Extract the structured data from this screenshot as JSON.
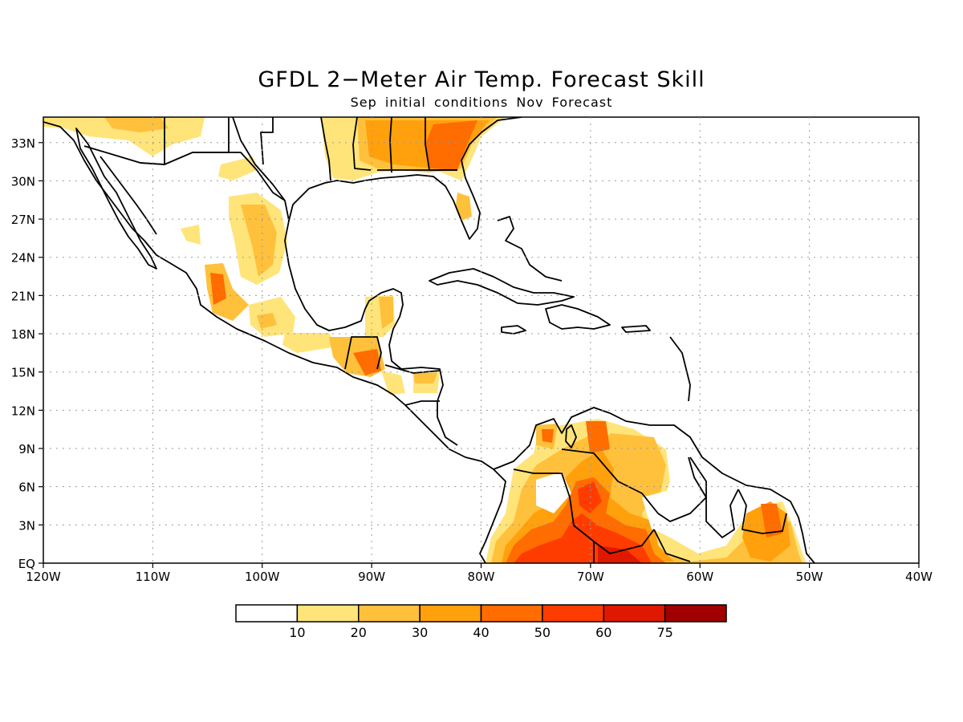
{
  "title": "GFDL 2−Meter Air Temp. Forecast Skill",
  "subtitle": "Sep initial conditions  Nov Forecast",
  "map": {
    "lon_range": [
      -120,
      -40
    ],
    "lat_range": [
      0,
      35
    ],
    "lon_labels": [
      "120W",
      "110W",
      "100W",
      "90W",
      "80W",
      "70W",
      "60W",
      "50W",
      "40W"
    ],
    "lat_labels": [
      "EQ",
      "3N",
      "6N",
      "9N",
      "12N",
      "15N",
      "18N",
      "21N",
      "24N",
      "27N",
      "30N",
      "33N"
    ],
    "grid": "dotted",
    "colors": {
      "10-20": "#ffe47a",
      "20-30": "#ffc03c",
      "30-40": "#ffa00c",
      "40-50": "#ff6c00",
      "50-60": "#ff3c00",
      "60-75": "#e01800",
      "75+": "#a00000"
    }
  },
  "colorbar": {
    "labels": [
      "10",
      "20",
      "30",
      "40",
      "50",
      "60",
      "75"
    ],
    "colors": [
      "#ffffff",
      "#ffe47a",
      "#ffc03c",
      "#ffa00c",
      "#ff6c00",
      "#ff3c00",
      "#e01800",
      "#a00000"
    ]
  }
}
